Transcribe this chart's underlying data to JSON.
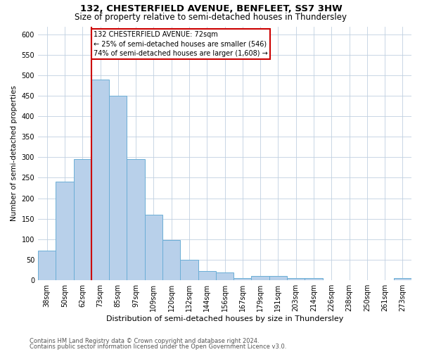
{
  "title": "132, CHESTERFIELD AVENUE, BENFLEET, SS7 3HW",
  "subtitle": "Size of property relative to semi-detached houses in Thundersley",
  "xlabel": "Distribution of semi-detached houses by size in Thundersley",
  "ylabel": "Number of semi-detached properties",
  "footnote1": "Contains HM Land Registry data © Crown copyright and database right 2024.",
  "footnote2": "Contains public sector information licensed under the Open Government Licence v3.0.",
  "categories": [
    "38sqm",
    "50sqm",
    "62sqm",
    "73sqm",
    "85sqm",
    "97sqm",
    "109sqm",
    "120sqm",
    "132sqm",
    "144sqm",
    "156sqm",
    "167sqm",
    "179sqm",
    "191sqm",
    "203sqm",
    "214sqm",
    "226sqm",
    "238sqm",
    "250sqm",
    "261sqm",
    "273sqm"
  ],
  "values": [
    72,
    240,
    295,
    490,
    450,
    295,
    160,
    97,
    50,
    22,
    18,
    5,
    10,
    10,
    5,
    5,
    0,
    0,
    0,
    0,
    5
  ],
  "bar_color": "#b8d0ea",
  "bar_edge_color": "#6baed6",
  "highlight_label": "132 CHESTERFIELD AVENUE: 72sqm",
  "highlight_pct_smaller": 25,
  "highlight_count_smaller": 546,
  "highlight_pct_larger": 74,
  "highlight_count_larger": 1608,
  "vline_color": "#cc0000",
  "annotation_box_color": "#cc0000",
  "vline_index": 3,
  "ylim": [
    0,
    620
  ],
  "yticks": [
    0,
    50,
    100,
    150,
    200,
    250,
    300,
    350,
    400,
    450,
    500,
    550,
    600
  ],
  "background_color": "#ffffff",
  "grid_color": "#c0d0e0",
  "title_fontsize": 9.5,
  "subtitle_fontsize": 8.5,
  "ylabel_fontsize": 7.5,
  "xlabel_fontsize": 8,
  "tick_fontsize": 7,
  "footnote_fontsize": 6
}
